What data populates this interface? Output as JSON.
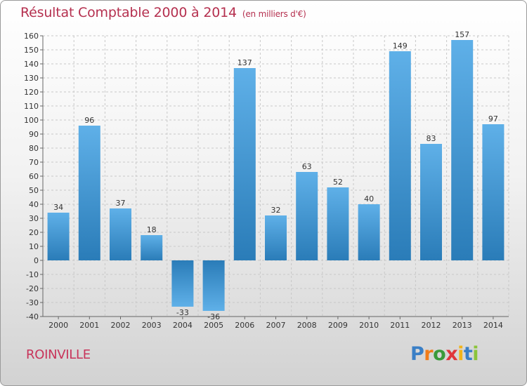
{
  "title": "Résultat Comptable 2000 à 2014",
  "subtitle": "(en milliers d'€)",
  "city": "ROINVILLE",
  "logo": {
    "letters": [
      "P",
      "r",
      "o",
      "x",
      "i",
      "t",
      "i"
    ],
    "colors": [
      "#3a7fc6",
      "#f07c1a",
      "#3a9a3a",
      "#e0353a",
      "#f2b41a",
      "#3a7fc6",
      "#8bc43a"
    ]
  },
  "colors": {
    "bar": "#3d9ad9",
    "bar_light": "#5fb0e8",
    "bar_dark": "#2a7cb8",
    "title": "#b5304f",
    "grid": "#c8c8c8"
  },
  "chart_data": {
    "type": "bar",
    "categories": [
      "2000",
      "2001",
      "2002",
      "2003",
      "2004",
      "2005",
      "2006",
      "2007",
      "2008",
      "2009",
      "2010",
      "2011",
      "2012",
      "2013",
      "2014"
    ],
    "values": [
      34,
      96,
      37,
      18,
      -33,
      -36,
      137,
      32,
      63,
      52,
      40,
      149,
      83,
      157,
      97
    ],
    "ylim": [
      -40,
      160
    ],
    "yticks": [
      -40,
      -30,
      -20,
      -10,
      0,
      10,
      20,
      30,
      40,
      50,
      60,
      70,
      80,
      90,
      100,
      110,
      120,
      130,
      140,
      150,
      160
    ],
    "grid": true,
    "xlabel": "",
    "ylabel": ""
  }
}
